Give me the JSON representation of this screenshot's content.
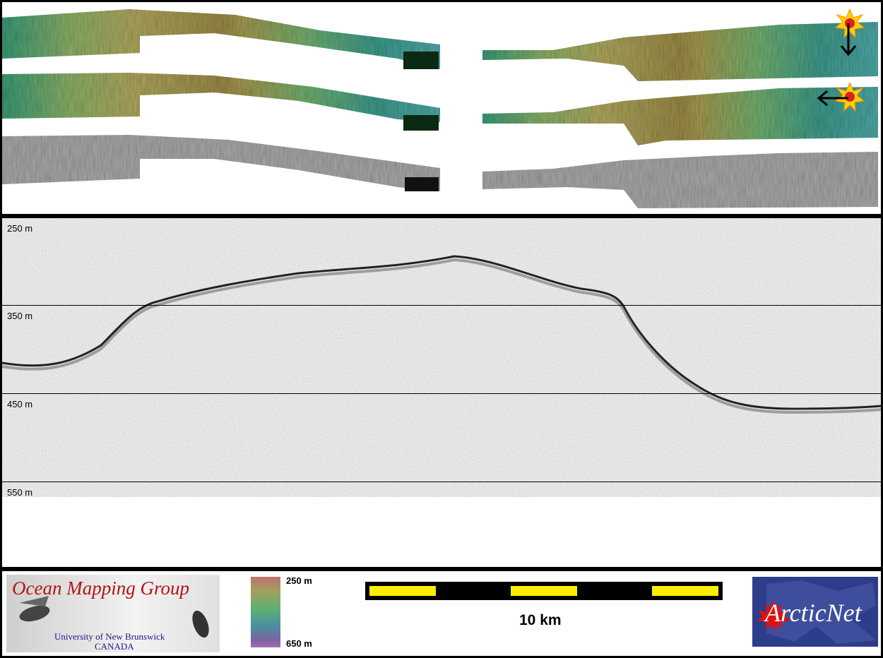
{
  "depth_axis": {
    "labels": [
      "250 m",
      "350 m",
      "450 m",
      "550 m"
    ]
  },
  "colorbar": {
    "top_label": "250 m",
    "bottom_label": "650 m"
  },
  "scale_bar": {
    "label": "10 km"
  },
  "logo_omg": {
    "title": "Ocean Mapping Group",
    "line1": "University of New Brunswick",
    "line2": "CANADA"
  },
  "logo_arcticnet": {
    "text": "ArcticNet"
  },
  "sun_icon": {
    "icon": "sun-icon",
    "color": "#ffd000"
  },
  "colors": {
    "scale_yellow": "#ffee00",
    "omg_red": "#b01515",
    "arcticnet_blue": "#2d3d8c",
    "maple_red": "#e01010"
  }
}
